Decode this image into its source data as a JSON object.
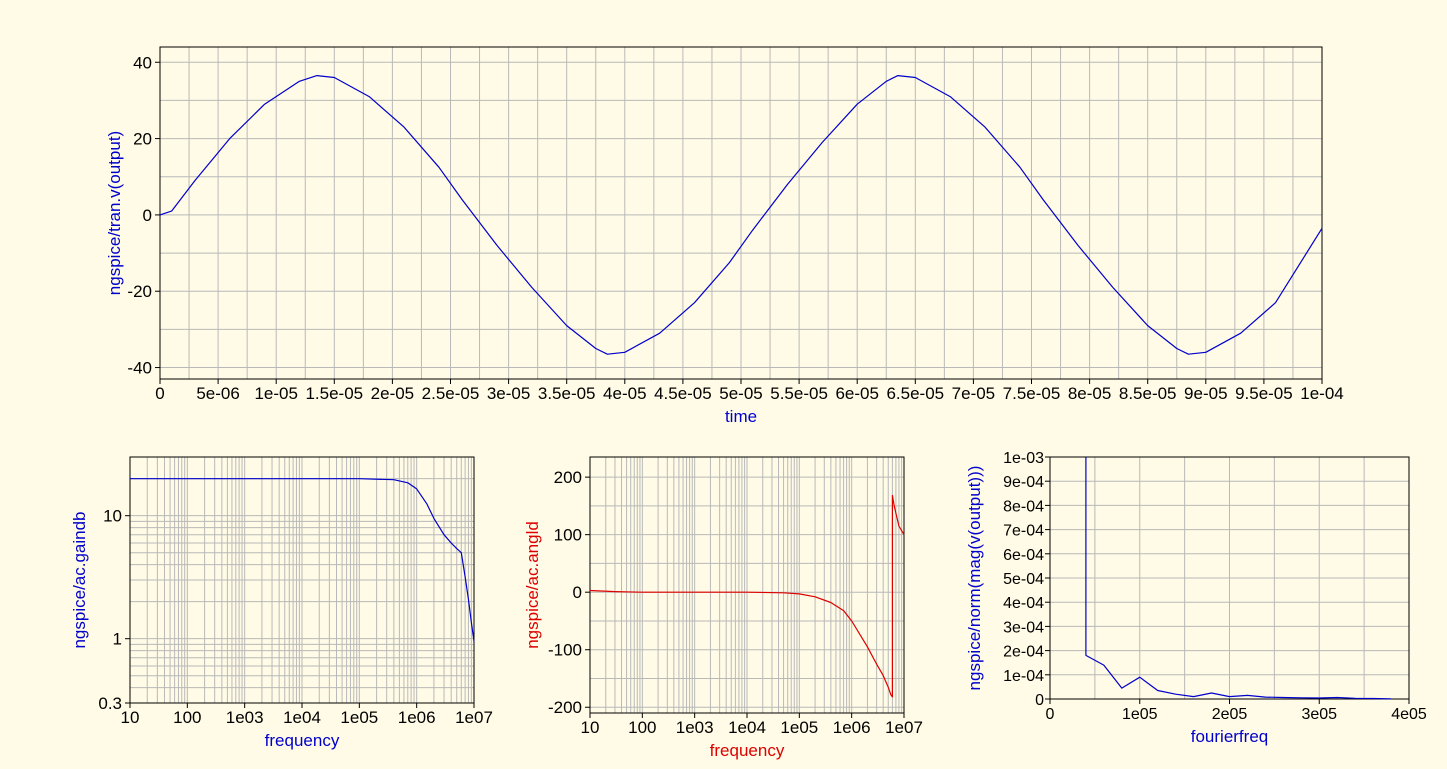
{
  "chart_data": [
    {
      "id": "tran",
      "type": "line",
      "xlabel": "time",
      "ylabel": "ngspice/tran.v(output)",
      "xlim": [
        0,
        0.0001
      ],
      "ylim": [
        -43,
        44
      ],
      "x_ticks": [
        0,
        5e-06,
        1e-05,
        1.5e-05,
        2e-05,
        2.5e-05,
        3e-05,
        3.5e-05,
        4e-05,
        4.5e-05,
        5e-05,
        5.5e-05,
        6e-05,
        6.5e-05,
        7e-05,
        7.5e-05,
        8e-05,
        8.5e-05,
        9e-05,
        9.5e-05,
        0.0001
      ],
      "x_tick_labels": [
        "0",
        "5e-06",
        "1e-05",
        "1.5e-05",
        "2e-05",
        "2.5e-05",
        "3e-05",
        "3.5e-05",
        "4e-05",
        "4.5e-05",
        "5e-05",
        "5.5e-05",
        "6e-05",
        "6.5e-05",
        "7e-05",
        "7.5e-05",
        "8e-05",
        "8.5e-05",
        "9e-05",
        "9.5e-05",
        "1e-04"
      ],
      "y_ticks": [
        -40,
        -20,
        0,
        20,
        40
      ],
      "y_tick_labels": [
        "-40",
        "-20",
        "0",
        "20",
        "40"
      ],
      "grid": true,
      "color": "#0000cc",
      "series": [
        {
          "x": [
            0,
            1e-06,
            3e-06,
            6e-06,
            9e-06,
            1.2e-05,
            1.35e-05,
            1.5e-05,
            1.8e-05,
            2.1e-05,
            2.4e-05,
            2.6e-05,
            2.9e-05,
            3.2e-05,
            3.5e-05,
            3.75e-05,
            3.85e-05,
            4e-05,
            4.3e-05,
            4.6e-05,
            4.9e-05,
            5.1e-05,
            5.4e-05,
            5.7e-05,
            6e-05,
            6.25e-05,
            6.35e-05,
            6.5e-05,
            6.8e-05,
            7.1e-05,
            7.4e-05,
            7.6e-05,
            7.9e-05,
            8.2e-05,
            8.5e-05,
            8.75e-05,
            8.85e-05,
            9e-05,
            9.3e-05,
            9.6e-05,
            0.0001
          ],
          "y": [
            0,
            1,
            9,
            20,
            29,
            35,
            36.5,
            36,
            31,
            23,
            12.5,
            4,
            -8,
            -19,
            -29,
            -35,
            -36.5,
            -36,
            -31,
            -23,
            -12.5,
            -4,
            8,
            19,
            29,
            35,
            36.5,
            36,
            31,
            23,
            12.5,
            4,
            -8,
            -19,
            -29,
            -35,
            -36.5,
            -36,
            -31,
            -23,
            -3.5
          ]
        }
      ]
    },
    {
      "id": "gain",
      "type": "line",
      "xlabel": "frequency",
      "ylabel": "ngspice/ac.gaindb",
      "xscale": "log",
      "yscale": "log",
      "xlim": [
        10,
        10000000
      ],
      "ylim": [
        0.3,
        30
      ],
      "x_ticks": [
        10,
        100,
        1000,
        10000,
        100000,
        1000000,
        10000000
      ],
      "x_tick_labels": [
        "10",
        "100",
        "1e03",
        "1e04",
        "1e05",
        "1e06",
        "1e07"
      ],
      "y_ticks": [
        0.3,
        1,
        10
      ],
      "y_tick_labels": [
        "0.3",
        "1",
        "10"
      ],
      "grid": true,
      "color": "#0000cc",
      "series": [
        {
          "x": [
            10,
            100000,
            400000,
            700000,
            1000000,
            1500000,
            2000000,
            3000000,
            4000000,
            5000000,
            6000000,
            7000000,
            8000000,
            9000000,
            10000000
          ],
          "y": [
            20,
            20,
            19.6,
            18.5,
            16.5,
            12.5,
            9.5,
            7,
            6,
            5.4,
            5,
            3.2,
            2.1,
            1.35,
            0.95
          ]
        }
      ]
    },
    {
      "id": "phase",
      "type": "line",
      "xlabel": "frequency",
      "ylabel": "ngspice/ac.angld",
      "xscale": "log",
      "xlim": [
        10,
        10000000
      ],
      "ylim": [
        -210,
        235
      ],
      "x_ticks": [
        10,
        100,
        1000,
        10000,
        100000,
        1000000,
        10000000
      ],
      "x_tick_labels": [
        "10",
        "100",
        "1e03",
        "1e04",
        "1e05",
        "1e06",
        "1e07"
      ],
      "y_ticks": [
        -200,
        -100,
        0,
        100,
        200
      ],
      "y_tick_labels": [
        "-200",
        "-100",
        "0",
        "100",
        "200"
      ],
      "grid": true,
      "color": "#dd0000",
      "series": [
        {
          "x": [
            10,
            30,
            100,
            1000,
            10000,
            50000,
            100000,
            200000,
            400000,
            700000,
            1000000,
            2000000,
            3000000,
            4000000,
            5000000,
            5600000,
            6000000,
            6000001,
            6500000,
            8000000,
            10000000
          ],
          "y": [
            3,
            1,
            0,
            0,
            0,
            -1,
            -3,
            -8,
            -18,
            -32,
            -50,
            -95,
            -125,
            -145,
            -165,
            -178,
            -182,
            168,
            150,
            115,
            100
          ]
        }
      ]
    },
    {
      "id": "fourier",
      "type": "line",
      "xlabel": "fourierfreq",
      "ylabel": "ngspice/norm(mag(v(output)))",
      "xlim": [
        0,
        400000
      ],
      "ylim": [
        0,
        0.001
      ],
      "x_ticks": [
        0,
        100000,
        200000,
        300000,
        400000
      ],
      "x_tick_labels": [
        "0",
        "1e05",
        "2e05",
        "3e05",
        "4e05"
      ],
      "y_ticks": [
        0,
        0.0001,
        0.0002,
        0.0003,
        0.0004,
        0.0005,
        0.0006,
        0.0007,
        0.0008,
        0.0009,
        0.001
      ],
      "y_tick_labels": [
        "0",
        "1e-04",
        "2e-04",
        "3e-04",
        "4e-04",
        "5e-04",
        "6e-04",
        "7e-04",
        "8e-04",
        "9e-04",
        "1e-03"
      ],
      "grid": true,
      "color": "#0000cc",
      "series": [
        {
          "x": [
            40000,
            40001,
            60000,
            80000,
            100000,
            120000,
            140000,
            160000,
            180000,
            200000,
            220000,
            240000,
            260000,
            280000,
            300000,
            320000,
            340000,
            360000,
            380000
          ],
          "y": [
            0.001,
            0.00018,
            0.00014,
            4.5e-05,
            9e-05,
            3.5e-05,
            2e-05,
            1e-05,
            2.5e-05,
            1e-05,
            1.5e-05,
            8e-06,
            6e-06,
            5e-06,
            4e-06,
            6e-06,
            3e-06,
            2e-06,
            1e-06
          ]
        }
      ]
    }
  ]
}
